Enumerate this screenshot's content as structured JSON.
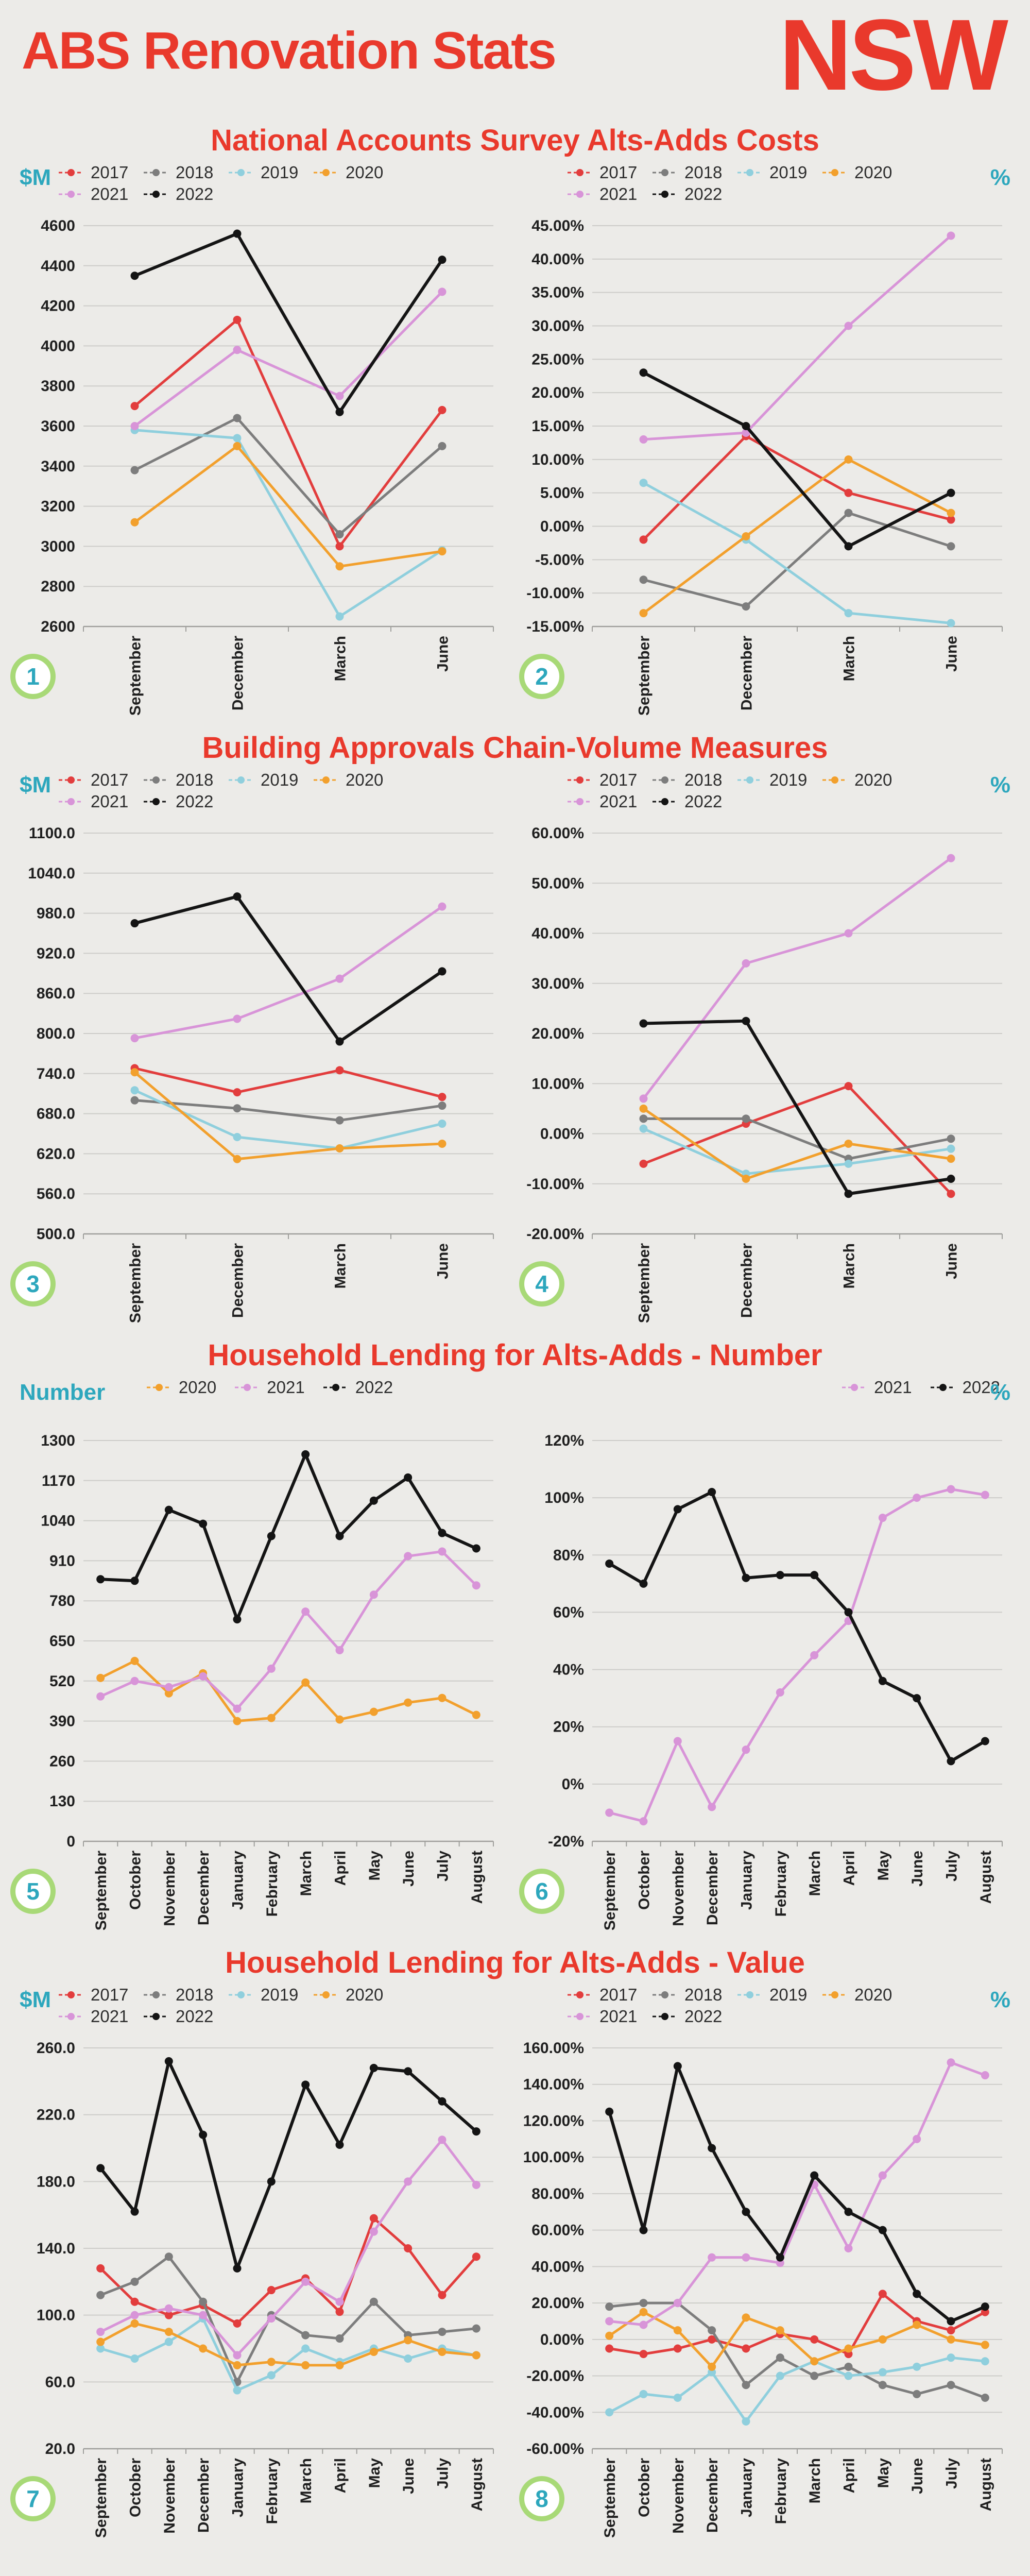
{
  "header": {
    "title": "ABS Renovation Stats",
    "region": "NSW"
  },
  "colors": {
    "accent": "#e9392c",
    "teal": "#2da7bd",
    "badge_ring": "#a8d977",
    "grid": "#cdccc9",
    "axis": "#9f9f9c",
    "series": {
      "2017": "#e23d3d",
      "2018": "#7d7d7d",
      "2019": "#8fcfdd",
      "2020": "#f2a02d",
      "2021": "#d894d8",
      "2022": "#141414"
    }
  },
  "sections": [
    {
      "title": "National Accounts Survey Alts-Adds Costs"
    },
    {
      "title": "Building Approvals Chain-Volume Measures"
    },
    {
      "title": "Household Lending for Alts-Adds - Number"
    },
    {
      "title": "Household Lending for Alts-Adds - Value"
    }
  ],
  "chart_data": [
    {
      "badge": "1",
      "unit": "$M",
      "type": "line",
      "legend_align": "left",
      "y_format": "number0",
      "ylim": [
        2600,
        4600
      ],
      "ytick_step": 200,
      "grid": true,
      "categories": [
        "September",
        "December",
        "March",
        "June"
      ],
      "series": [
        {
          "name": "2017",
          "values": [
            3700,
            4130,
            3000,
            3680
          ]
        },
        {
          "name": "2018",
          "values": [
            3380,
            3640,
            3060,
            3500
          ]
        },
        {
          "name": "2019",
          "values": [
            3580,
            3540,
            2650,
            2980
          ]
        },
        {
          "name": "2020",
          "values": [
            3120,
            3500,
            2900,
            2975
          ]
        },
        {
          "name": "2021",
          "values": [
            3600,
            3980,
            3750,
            4270
          ]
        },
        {
          "name": "2022",
          "values": [
            4350,
            4560,
            3670,
            4430
          ]
        }
      ]
    },
    {
      "badge": "2",
      "unit": "%",
      "type": "line",
      "legend_align": "left",
      "y_format": "percent2",
      "ylim": [
        -15,
        45
      ],
      "ytick_step": 5,
      "grid": true,
      "categories": [
        "September",
        "December",
        "March",
        "June"
      ],
      "series": [
        {
          "name": "2017",
          "values": [
            -2,
            13.5,
            5,
            1
          ]
        },
        {
          "name": "2018",
          "values": [
            -8,
            -12,
            2,
            -3
          ]
        },
        {
          "name": "2019",
          "values": [
            6.5,
            -2,
            -13,
            -14.5
          ]
        },
        {
          "name": "2020",
          "values": [
            -13,
            -1.5,
            10,
            2
          ]
        },
        {
          "name": "2021",
          "values": [
            13,
            14,
            30,
            43.5
          ]
        },
        {
          "name": "2022",
          "values": [
            23,
            15,
            -3,
            5
          ]
        }
      ]
    },
    {
      "badge": "3",
      "unit": "$M",
      "type": "line",
      "legend_align": "left",
      "y_format": "number1",
      "ylim": [
        500,
        1100
      ],
      "ytick_step": 60,
      "grid": true,
      "categories": [
        "September",
        "December",
        "March",
        "June"
      ],
      "series": [
        {
          "name": "2017",
          "values": [
            748,
            712,
            745,
            705
          ]
        },
        {
          "name": "2018",
          "values": [
            700,
            688,
            670,
            692
          ]
        },
        {
          "name": "2019",
          "values": [
            715,
            645,
            628,
            665
          ]
        },
        {
          "name": "2020",
          "values": [
            742,
            612,
            628,
            635
          ]
        },
        {
          "name": "2021",
          "values": [
            793,
            822,
            882,
            990
          ]
        },
        {
          "name": "2022",
          "values": [
            965,
            1005,
            788,
            893
          ]
        }
      ]
    },
    {
      "badge": "4",
      "unit": "%",
      "type": "line",
      "legend_align": "left",
      "y_format": "percent2",
      "ylim": [
        -20,
        60
      ],
      "ytick_step": 10,
      "grid": true,
      "categories": [
        "September",
        "December",
        "March",
        "June"
      ],
      "series": [
        {
          "name": "2017",
          "values": [
            -6,
            2,
            9.5,
            -12
          ]
        },
        {
          "name": "2018",
          "values": [
            3,
            3,
            -5,
            -1
          ]
        },
        {
          "name": "2019",
          "values": [
            1,
            -8,
            -6,
            -3
          ]
        },
        {
          "name": "2020",
          "values": [
            5,
            -9,
            -2,
            -5
          ]
        },
        {
          "name": "2021",
          "values": [
            7,
            34,
            40,
            55
          ]
        },
        {
          "name": "2022",
          "values": [
            22,
            22.5,
            -12,
            -9
          ]
        }
      ]
    },
    {
      "badge": "5",
      "unit": "Number",
      "type": "line",
      "legend_align": "center",
      "y_format": "number0",
      "ylim": [
        0,
        1300
      ],
      "ytick_step": 130,
      "grid": true,
      "categories": [
        "September",
        "October",
        "November",
        "December",
        "January",
        "February",
        "March",
        "April",
        "May",
        "June",
        "July",
        "August"
      ],
      "series": [
        {
          "name": "2020",
          "values": [
            530,
            585,
            480,
            545,
            390,
            400,
            515,
            395,
            420,
            450,
            465,
            410
          ]
        },
        {
          "name": "2021",
          "values": [
            470,
            520,
            500,
            535,
            430,
            560,
            745,
            620,
            800,
            925,
            940,
            830
          ]
        },
        {
          "name": "2022",
          "values": [
            850,
            845,
            1075,
            1030,
            720,
            990,
            1255,
            990,
            1105,
            1180,
            1000,
            950
          ]
        }
      ]
    },
    {
      "badge": "6",
      "unit": "%",
      "type": "line",
      "legend_align": "right",
      "y_format": "percent0",
      "ylim": [
        -20,
        120
      ],
      "ytick_step": 20,
      "grid": true,
      "categories": [
        "September",
        "October",
        "November",
        "December",
        "January",
        "February",
        "March",
        "April",
        "May",
        "June",
        "July",
        "August"
      ],
      "series": [
        {
          "name": "2021",
          "values": [
            -10,
            -13,
            15,
            -8,
            12,
            32,
            45,
            57,
            93,
            100,
            103,
            101
          ]
        },
        {
          "name": "2022",
          "values": [
            77,
            70,
            96,
            102,
            72,
            73,
            73,
            60,
            36,
            30,
            8,
            15
          ]
        }
      ]
    },
    {
      "badge": "7",
      "unit": "$M",
      "type": "line",
      "legend_align": "left",
      "y_format": "number1",
      "ylim": [
        20,
        260
      ],
      "ytick_step": 40,
      "grid": true,
      "categories": [
        "September",
        "October",
        "November",
        "December",
        "January",
        "February",
        "March",
        "April",
        "May",
        "June",
        "July",
        "August"
      ],
      "series": [
        {
          "name": "2017",
          "values": [
            128,
            108,
            100,
            106,
            95,
            115,
            122,
            102,
            158,
            140,
            112,
            135
          ]
        },
        {
          "name": "2018",
          "values": [
            112,
            120,
            135,
            108,
            60,
            100,
            88,
            86,
            108,
            88,
            90,
            92
          ]
        },
        {
          "name": "2019",
          "values": [
            80,
            74,
            84,
            98,
            55,
            64,
            80,
            72,
            80,
            74,
            80,
            76
          ]
        },
        {
          "name": "2020",
          "values": [
            84,
            95,
            90,
            80,
            70,
            72,
            70,
            70,
            78,
            85,
            78,
            76
          ]
        },
        {
          "name": "2021",
          "values": [
            90,
            100,
            104,
            100,
            76,
            98,
            120,
            108,
            150,
            180,
            205,
            178
          ]
        },
        {
          "name": "2022",
          "values": [
            188,
            162,
            252,
            208,
            128,
            180,
            238,
            202,
            248,
            246,
            228,
            210
          ]
        }
      ]
    },
    {
      "badge": "8",
      "unit": "%",
      "type": "line",
      "legend_align": "left",
      "y_format": "percent2",
      "ylim": [
        -60,
        160
      ],
      "ytick_step": 20,
      "grid": true,
      "categories": [
        "September",
        "October",
        "November",
        "December",
        "January",
        "February",
        "March",
        "April",
        "May",
        "June",
        "July",
        "August"
      ],
      "series": [
        {
          "name": "2017",
          "values": [
            -5,
            -8,
            -5,
            0,
            -5,
            3,
            0,
            -8,
            25,
            10,
            5,
            15
          ]
        },
        {
          "name": "2018",
          "values": [
            18,
            20,
            20,
            5,
            -25,
            -10,
            -20,
            -15,
            -25,
            -30,
            -25,
            -32
          ]
        },
        {
          "name": "2019",
          "values": [
            -40,
            -30,
            -32,
            -18,
            -45,
            -20,
            -12,
            -20,
            -18,
            -15,
            -10,
            -12
          ]
        },
        {
          "name": "2020",
          "values": [
            2,
            15,
            5,
            -15,
            12,
            5,
            -12,
            -5,
            0,
            8,
            0,
            -3
          ]
        },
        {
          "name": "2021",
          "values": [
            10,
            8,
            20,
            45,
            45,
            42,
            85,
            50,
            90,
            110,
            152,
            145
          ]
        },
        {
          "name": "2022",
          "values": [
            125,
            60,
            150,
            105,
            70,
            45,
            90,
            70,
            60,
            25,
            10,
            18
          ]
        }
      ]
    }
  ]
}
